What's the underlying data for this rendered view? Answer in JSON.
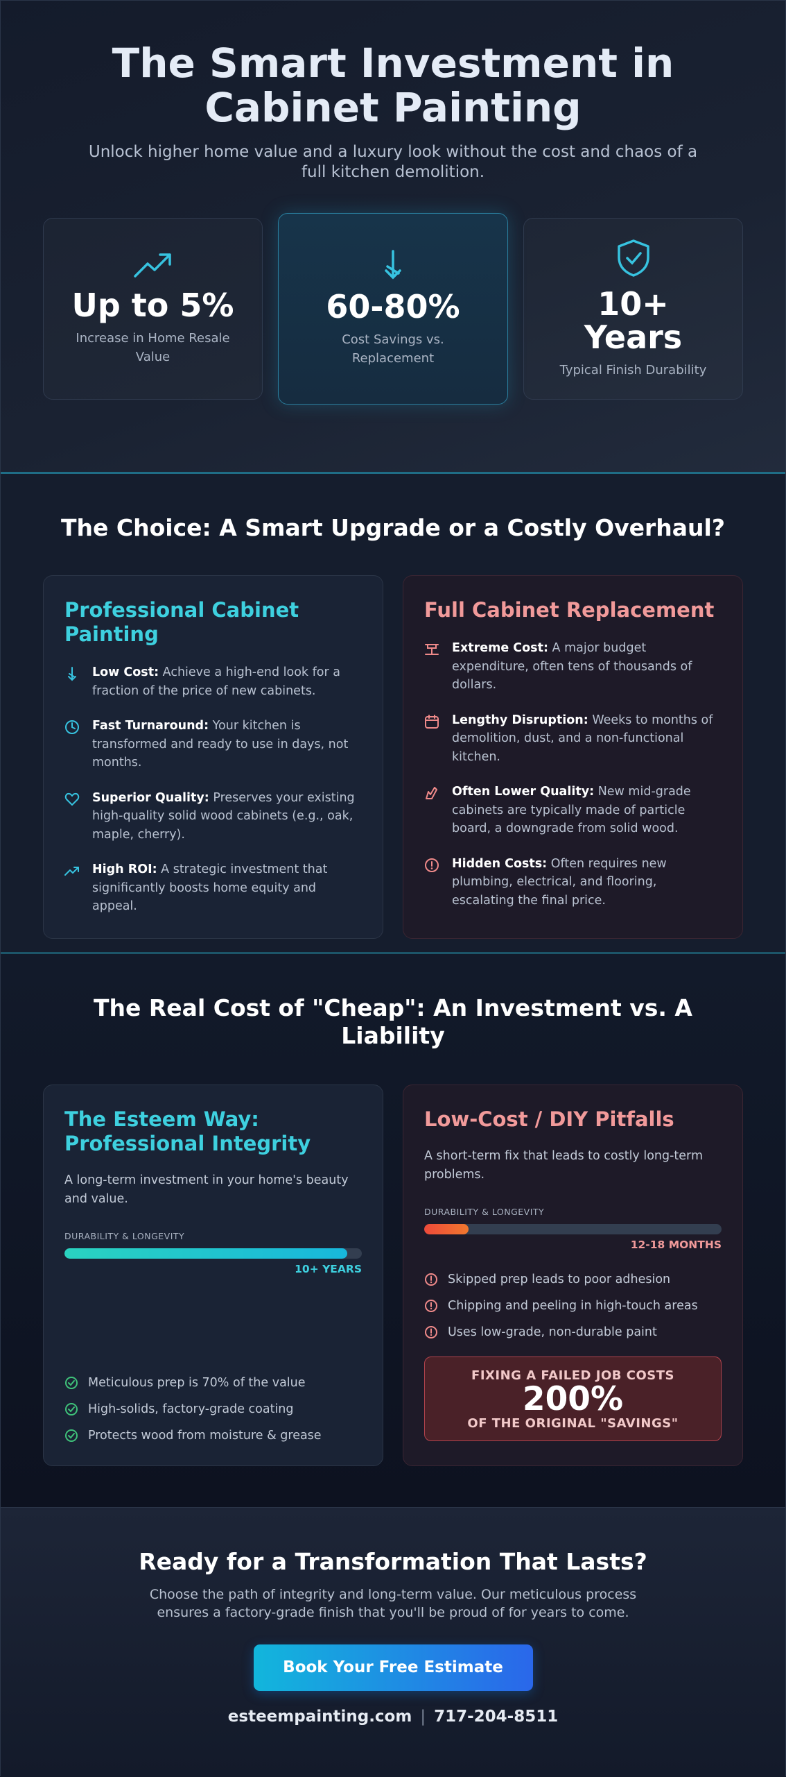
{
  "hero": {
    "title": "The Smart Investment in Cabinet Painting",
    "subtitle": "Unlock higher home value and a luxury look without the cost and chaos of a full kitchen demolition.",
    "stats": [
      {
        "value": "Up to 5%",
        "label": "Increase in Home Resale Value"
      },
      {
        "value": "60-80%",
        "label": "Cost Savings vs. Replacement"
      },
      {
        "value": "10+ Years",
        "label": "Typical Finish Durability"
      }
    ]
  },
  "choice": {
    "title": "The Choice: A Smart Upgrade or a Costly Overhaul?",
    "painting": {
      "title": "Professional Cabinet Painting",
      "items": [
        {
          "label": "Low Cost:",
          "text": "Achieve a high-end look for a fraction of the price of new cabinets."
        },
        {
          "label": "Fast Turnaround:",
          "text": "Your kitchen is transformed and ready to use in days, not months."
        },
        {
          "label": "Superior Quality:",
          "text": "Preserves your existing high-quality solid wood cabinets (e.g., oak, maple, cherry)."
        },
        {
          "label": "High ROI:",
          "text": "A strategic investment that significantly boosts home equity and appeal."
        }
      ]
    },
    "replacement": {
      "title": "Full Cabinet Replacement",
      "items": [
        {
          "label": "Extreme Cost:",
          "text": "A major budget expenditure, often tens of thousands of dollars."
        },
        {
          "label": "Lengthy Disruption:",
          "text": "Weeks to months of demolition, dust, and a non-functional kitchen."
        },
        {
          "label": "Often Lower Quality:",
          "text": "New mid-grade cabinets are typically made of particle board, a downgrade from solid wood."
        },
        {
          "label": "Hidden Costs:",
          "text": "Often requires new plumbing, electrical, and flooring, escalating the final price."
        }
      ]
    }
  },
  "cost": {
    "title": "The Real Cost of \"Cheap\": An Investment vs. A Liability",
    "esteem": {
      "title": "The Esteem Way: Professional Integrity",
      "description": "A long-term investment in your home's beauty and value.",
      "meter_label": "DURABILITY & LONGEVITY",
      "meter_value": "10+ YEARS",
      "checks": [
        "Meticulous prep is 70% of the value",
        "High-solids, factory-grade coating",
        "Protects wood from moisture & grease"
      ]
    },
    "pitfalls": {
      "title": "Low-Cost / DIY Pitfalls",
      "description": "A short-term fix that leads to costly long-term problems.",
      "meter_label": "DURABILITY & LONGEVITY",
      "meter_value": "12-18 MONTHS",
      "issues": [
        "Skipped prep leads to poor adhesion",
        "Chipping and peeling in high-touch areas",
        "Uses low-grade, non-durable paint"
      ],
      "callout": {
        "top": "FIXING A FAILED JOB COSTS",
        "value": "200%",
        "bottom": "OF THE ORIGINAL \"SAVINGS\""
      }
    }
  },
  "cta": {
    "title": "Ready for a Transformation That Lasts?",
    "text": "Choose the path of integrity and long-term value. Our meticulous process ensures a factory-grade finish that you'll be proud of for years to come.",
    "button": "Book Your Free Estimate",
    "website": "esteempainting.com",
    "separator": "|",
    "phone": "717-204-8511"
  }
}
